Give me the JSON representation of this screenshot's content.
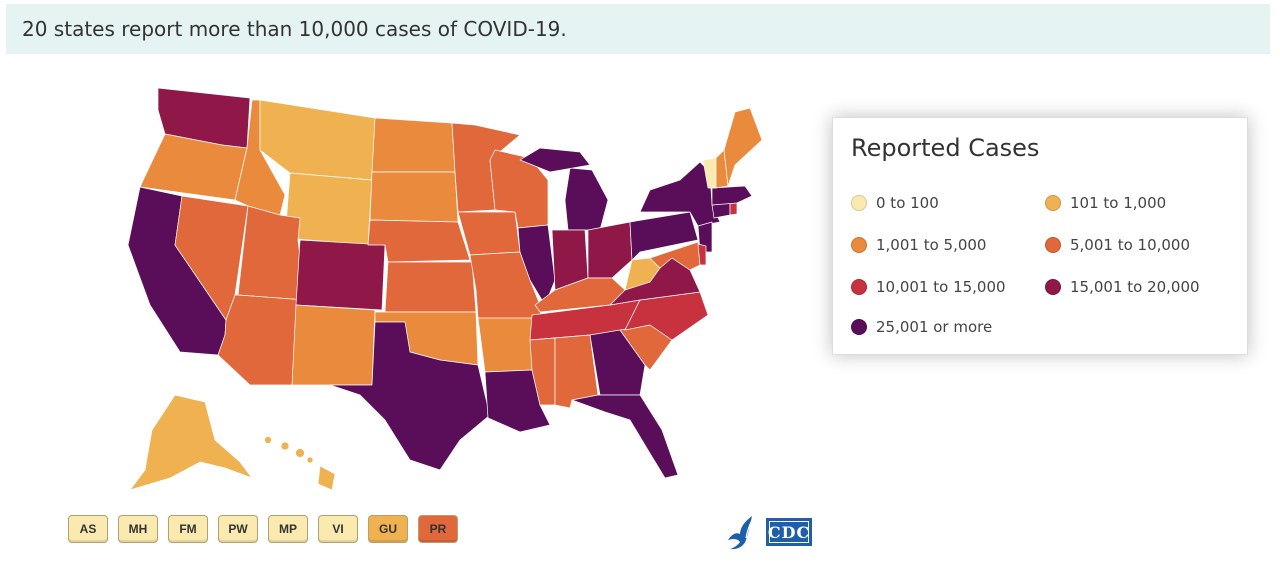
{
  "banner": {
    "text": "20 states report more than 10,000 cases of COVID-19."
  },
  "legend": {
    "title": "Reported Cases",
    "items": [
      {
        "label": "0 to 100",
        "color": "#fbeab0"
      },
      {
        "label": "101 to 1,000",
        "color": "#f0b150"
      },
      {
        "label": "1,001 to 5,000",
        "color": "#e98a3d"
      },
      {
        "label": "5,001 to 10,000",
        "color": "#e0683a"
      },
      {
        "label": "10,001 to 15,000",
        "color": "#c8323f"
      },
      {
        "label": "15,001 to 20,000",
        "color": "#8f1848"
      },
      {
        "label": "25,001 or more",
        "color": "#5a0d59"
      }
    ]
  },
  "territories": [
    {
      "code": "AS",
      "color": "#fbeab0"
    },
    {
      "code": "MH",
      "color": "#fbeab0"
    },
    {
      "code": "FM",
      "color": "#fbeab0"
    },
    {
      "code": "PW",
      "color": "#fbeab0"
    },
    {
      "code": "MP",
      "color": "#fbeab0"
    },
    {
      "code": "VI",
      "color": "#fbeab0"
    },
    {
      "code": "GU",
      "color": "#f0b150"
    },
    {
      "code": "PR",
      "color": "#e0683a"
    }
  ],
  "logo": {
    "text": "CDC"
  }
}
